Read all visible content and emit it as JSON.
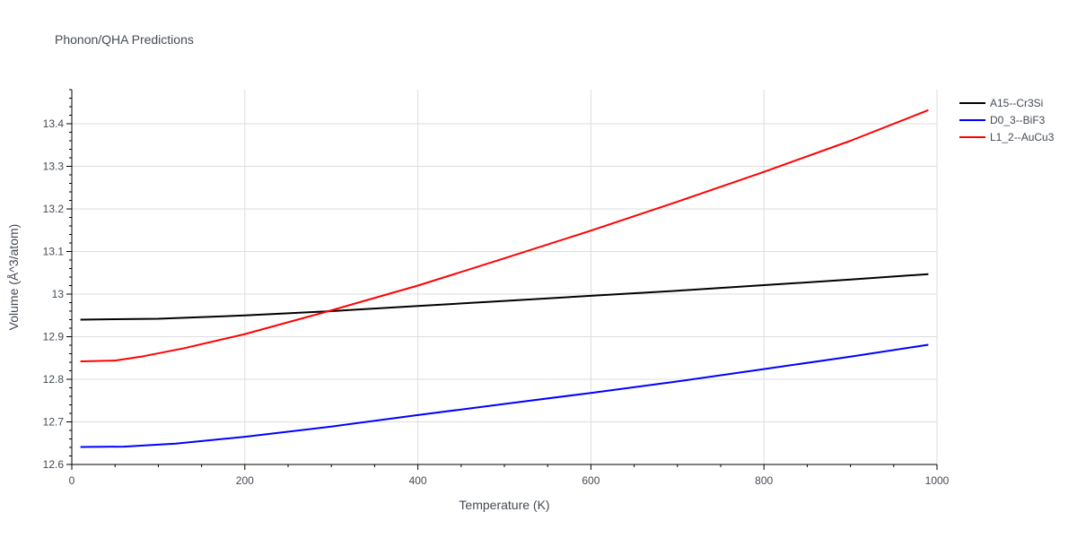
{
  "chart_data": {
    "type": "line",
    "title": "Phonon/QHA Predictions",
    "xlabel": "Temperature (K)",
    "ylabel": "Volume (Å^3/atom)",
    "xlim": [
      0,
      1000
    ],
    "ylim": [
      12.6,
      13.48
    ],
    "xticks": [
      0,
      200,
      400,
      600,
      800,
      1000
    ],
    "xtick_labels": [
      "0",
      "200",
      "400",
      "600",
      "800",
      "1000"
    ],
    "yticks": [
      12.6,
      12.7,
      12.8,
      12.9,
      13.0,
      13.1,
      13.2,
      13.3,
      13.4
    ],
    "ytick_labels": [
      "12.6",
      "12.7",
      "12.8",
      "12.9",
      "13",
      "13.1",
      "13.2",
      "13.3",
      "13.4"
    ],
    "grid": true,
    "legend_position": "top-right",
    "series": [
      {
        "name": "A15--Cr3Si",
        "color": "#000000",
        "x": [
          10,
          50,
          100,
          200,
          300,
          400,
          500,
          600,
          700,
          800,
          900,
          990
        ],
        "y": [
          12.94,
          12.941,
          12.942,
          12.95,
          12.96,
          12.972,
          12.984,
          12.996,
          13.008,
          13.021,
          13.034,
          13.047
        ]
      },
      {
        "name": "D0_3--BiF3",
        "color": "#0000ff",
        "x": [
          10,
          60,
          120,
          200,
          300,
          400,
          500,
          600,
          700,
          800,
          900,
          990
        ],
        "y": [
          12.641,
          12.642,
          12.649,
          12.665,
          12.689,
          12.716,
          12.742,
          12.768,
          12.795,
          12.824,
          12.853,
          12.881
        ]
      },
      {
        "name": "L1_2--AuCu3",
        "color": "#ff0000",
        "x": [
          10,
          50,
          80,
          130,
          200,
          300,
          400,
          500,
          600,
          700,
          800,
          900,
          990
        ],
        "y": [
          12.842,
          12.844,
          12.853,
          12.873,
          12.906,
          12.962,
          13.02,
          13.084,
          13.149,
          13.217,
          13.287,
          13.36,
          13.432
        ]
      }
    ]
  }
}
